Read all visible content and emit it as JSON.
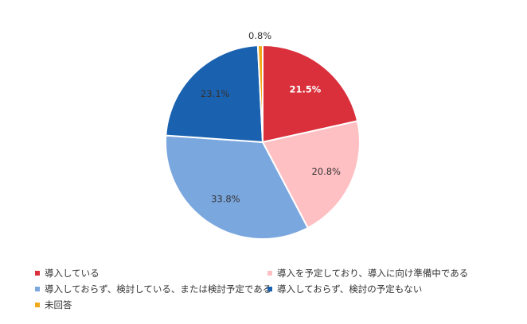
{
  "chart_data": {
    "type": "pie",
    "categories": [
      "導入している",
      "導入を予定しており、導入に向け準備中である",
      "導入しておらず、検討している、または検討予定である",
      "導入しておらず、検討の予定もない",
      "未回答"
    ],
    "values": [
      21.5,
      20.8,
      33.8,
      23.1,
      0.8
    ],
    "labels": [
      "21.5%",
      "20.8%",
      "33.8%",
      "23.1%",
      "0.8%"
    ],
    "colors": [
      "#d9303b",
      "#ffc0c4",
      "#7ba7df",
      "#1a62b0",
      "#f0a91b"
    ],
    "label_colors": [
      "#ffffff",
      "#333333",
      "#333333",
      "#333333",
      "#333333"
    ],
    "start_angle_deg": 0,
    "direction": "clockwise",
    "legend_position": "bottom"
  }
}
